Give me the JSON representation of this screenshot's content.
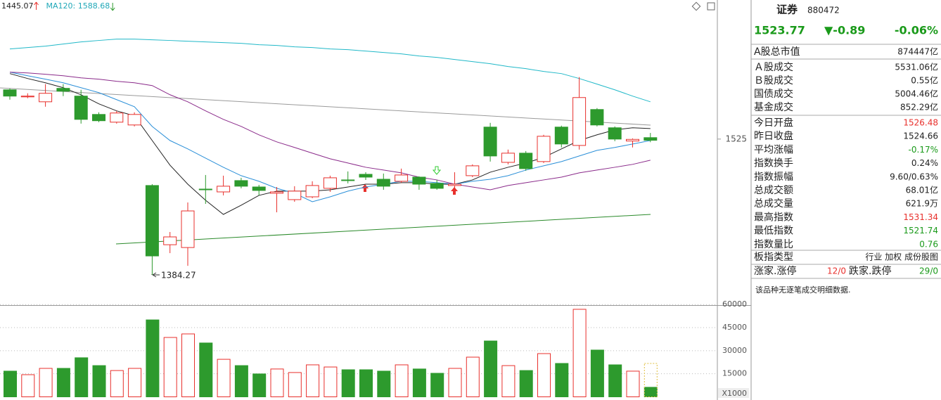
{
  "chart_data": [
    {
      "type": "candlestick",
      "indicator_labels": [
        {
          "text": "1445.07",
          "color": "#222222",
          "arrow": "up",
          "arrow_color": "#e8302c"
        },
        {
          "text": "MA120: 1588.68",
          "color": "#20a8b8",
          "arrow": "down",
          "arrow_color": "#2d9a2d"
        }
      ],
      "open": [
        1576.0,
        1568.7,
        1563.6,
        1577.5,
        1569.5,
        1550.5,
        1542.5,
        1539.6,
        1476.9,
        1415.6,
        1412.7,
        1473.2,
        1470.3,
        1482.0,
        1475.4,
        1468.9,
        1462.3,
        1465.2,
        1474.0,
        1482.7,
        1488.5,
        1483.4,
        1481.3,
        1485.6,
        1479.1,
        1476.9,
        1487.1,
        1537.4,
        1500.9,
        1510.4,
        1501.7,
        1537.4,
        1518.4,
        1555.6,
        1536.7,
        1523.0,
        1526.48
      ],
      "high": [
        1577.5,
        1572.4,
        1581.9,
        1581.9,
        1576.0,
        1552.7,
        1554.2,
        1552.7,
        1478.3,
        1428.8,
        1459.4,
        1487.8,
        1487.1,
        1484.9,
        1477.6,
        1475.4,
        1476.2,
        1481.3,
        1487.1,
        1491.5,
        1490.7,
        1489.3,
        1494.4,
        1486.4,
        1482.7,
        1490.7,
        1498.8,
        1541.8,
        1514.1,
        1512.6,
        1529.4,
        1538.9,
        1589.2,
        1557.1,
        1538.1,
        1525.7,
        1531.34
      ],
      "low": [
        1565.8,
        1567.3,
        1558.5,
        1569.5,
        1541.0,
        1542.5,
        1541.0,
        1538.1,
        1384.27,
        1406.9,
        1393.8,
        1457.9,
        1466.7,
        1474.0,
        1466.7,
        1449.2,
        1460.1,
        1463.8,
        1470.3,
        1479.1,
        1482.7,
        1472.5,
        1479.8,
        1472.5,
        1472.5,
        1474.0,
        1485.6,
        1501.7,
        1498.8,
        1492.2,
        1500.2,
        1516.3,
        1514.1,
        1538.1,
        1522.8,
        1516.3,
        1521.74
      ],
      "close": [
        1569.5,
        1569.5,
        1572.4,
        1574.6,
        1545.4,
        1544.0,
        1552.0,
        1550.5,
        1404.0,
        1423.7,
        1450.6,
        1472.5,
        1476.2,
        1476.2,
        1471.8,
        1470.3,
        1471.1,
        1476.9,
        1484.9,
        1482.0,
        1485.6,
        1476.2,
        1487.8,
        1478.3,
        1474.0,
        1478.3,
        1497.3,
        1507.5,
        1510.4,
        1494.4,
        1527.9,
        1519.9,
        1568.0,
        1539.6,
        1525.0,
        1524.66,
        1523.77
      ],
      "lines": [
        {
          "color": "#20b8c8",
          "values": [
            1618.3,
            1619.8,
            1621.2,
            1623.4,
            1625.6,
            1627.1,
            1628.5,
            1628.5,
            1627.8,
            1627.1,
            1626.3,
            1625.6,
            1624.9,
            1624.1,
            1622.7,
            1622.0,
            1620.5,
            1619.8,
            1618.3,
            1617.6,
            1616.1,
            1614.7,
            1613.2,
            1611.0,
            1609.6,
            1607.4,
            1605.2,
            1603.0,
            1600.1,
            1597.9,
            1595.0,
            1592.8,
            1587.7,
            1581.9,
            1576.0,
            1569.5,
            1563.6
          ]
        },
        {
          "color": "#222222",
          "values": [
            1592.8,
            1587.7,
            1583.3,
            1578.2,
            1570.9,
            1561.5,
            1554.2,
            1549.1,
            1523.5,
            1498.0,
            1478.3,
            1461.6,
            1447.0,
            1456.5,
            1466.7,
            1471.1,
            1471.1,
            1471.1,
            1472.5,
            1475.4,
            1478.3,
            1478.3,
            1479.8,
            1479.8,
            1478.3,
            1478.3,
            1482.7,
            1490.7,
            1495.8,
            1500.2,
            1506.0,
            1514.8,
            1523.5,
            1529.4,
            1534.5,
            1536.7,
            1535.9
          ]
        },
        {
          "color": "#2a8fd8",
          "values": [
            1594.3,
            1590.6,
            1587.0,
            1583.3,
            1578.2,
            1573.1,
            1565.8,
            1558.5,
            1538.1,
            1523.5,
            1514.8,
            1505.3,
            1495.8,
            1487.1,
            1481.3,
            1474.0,
            1468.9,
            1460.1,
            1465.2,
            1471.1,
            1475.4,
            1478.3,
            1481.3,
            1481.3,
            1479.8,
            1478.3,
            1481.3,
            1483.4,
            1487.1,
            1492.9,
            1497.3,
            1501.7,
            1507.5,
            1513.3,
            1516.3,
            1519.9,
            1523.5
          ]
        },
        {
          "color": "#8a2a8a",
          "values": [
            1594.3,
            1593.5,
            1592.1,
            1590.6,
            1588.4,
            1587.0,
            1584.8,
            1583.3,
            1580.4,
            1570.9,
            1563.6,
            1554.2,
            1545.4,
            1538.1,
            1529.4,
            1522.1,
            1516.3,
            1510.4,
            1504.6,
            1500.2,
            1495.8,
            1492.9,
            1490.0,
            1485.6,
            1482.7,
            1478.3,
            1475.4,
            1472.5,
            1476.9,
            1479.8,
            1482.7,
            1485.6,
            1490.0,
            1492.9,
            1495.8,
            1498.8,
            1503.1
          ]
        }
      ],
      "up_color": "#e8302c",
      "down_color": "#2d9a2d",
      "ylim": [
        1356,
        1669
      ],
      "yticks": [
        1525
      ]
    },
    {
      "type": "bar",
      "values": [
        16700,
        14400,
        18500,
        18500,
        25400,
        20300,
        17100,
        18500,
        50000,
        38600,
        40900,
        35000,
        24400,
        20300,
        14900,
        18100,
        15800,
        20800,
        19400,
        17600,
        17600,
        16700,
        20800,
        18100,
        15300,
        18500,
        25800,
        36300,
        20300,
        17100,
        28100,
        21700,
        56900,
        30400,
        20800,
        16700,
        6200
      ],
      "forecast": 21700,
      "forecast_color": "#e0c040",
      "ylim": [
        0,
        61000
      ],
      "yticks": [
        15000,
        30000,
        45000,
        60000
      ],
      "unit": "X1000",
      "grid": true
    }
  ],
  "panel": {
    "title": "证券",
    "code": "880472",
    "price": "1523.77",
    "change": "▼-0.89",
    "change_pct": "-0.06%",
    "quote_color": "#1a9a1a",
    "rows": [
      {
        "label": "A股总市值",
        "value": "874447亿"
      },
      {
        "label": "Ａ股成交",
        "value": "5531.06亿"
      },
      {
        "label": "Ｂ股成交",
        "value": "0.55亿"
      },
      {
        "label": "国债成交",
        "value": "5004.46亿"
      },
      {
        "label": "基金成交",
        "value": "852.29亿"
      },
      {
        "label": "今日开盘",
        "value": "1526.48",
        "color": "#e8302c"
      },
      {
        "label": "昨日收盘",
        "value": "1524.66"
      },
      {
        "label": "平均涨幅",
        "value": "-0.17%",
        "color": "#1a9a1a"
      },
      {
        "label": "指数换手",
        "value": "0.24%"
      },
      {
        "label": "指数振幅",
        "value": "9.60/0.63%"
      },
      {
        "label": "总成交额",
        "value": "68.01亿"
      },
      {
        "label": "总成交量",
        "value": "621.9万"
      },
      {
        "label": "最高指数",
        "value": "1531.34",
        "color": "#e8302c"
      },
      {
        "label": "最低指数",
        "value": "1521.74",
        "color": "#1a9a1a"
      },
      {
        "label": "指数量比",
        "value": "0.76",
        "color": "#1a9a1a"
      },
      {
        "label": "板指类型",
        "value": "行业 加权 成份股图"
      }
    ],
    "breadth": {
      "up_label": "涨家.涨停",
      "up_value": "12/0",
      "up_color": "#e8302c",
      "down_label": "跌家.跌停",
      "down_value": "29/0",
      "down_color": "#1a9a1a"
    },
    "note": "该品种无逐笔成交明细数据."
  }
}
